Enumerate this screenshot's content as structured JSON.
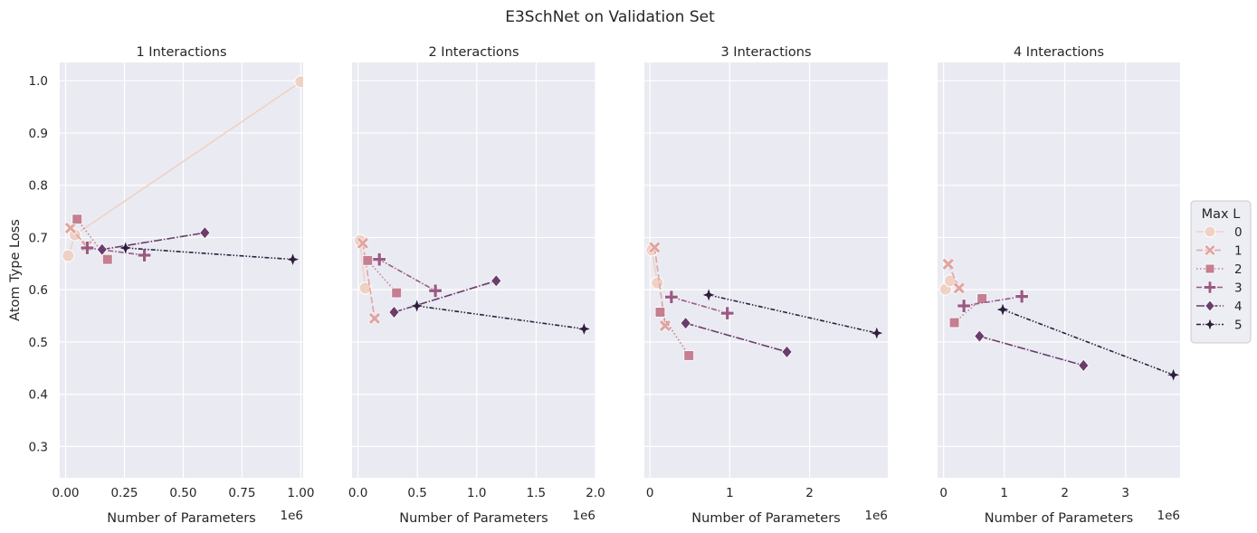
{
  "figure": {
    "title": "E3SchNet on Validation Set"
  },
  "legend": {
    "title": "Max L",
    "placement": "center-right",
    "entries": [
      {
        "label": "0",
        "color": "#efd1c6",
        "marker": "circle",
        "dash": "solid"
      },
      {
        "label": "1",
        "color": "#e0a5a1",
        "marker": "x",
        "dash": "dashed"
      },
      {
        "label": "2",
        "color": "#c47f91",
        "marker": "square",
        "dash": "dotted"
      },
      {
        "label": "3",
        "color": "#995a83",
        "marker": "plus",
        "dash": "dashdot-long"
      },
      {
        "label": "4",
        "color": "#6a3d6b",
        "marker": "diamond",
        "dash": "dashdot"
      },
      {
        "label": "5",
        "color": "#2d1e3e",
        "marker": "star",
        "dash": "dashdotdot"
      }
    ]
  },
  "chart_data": [
    {
      "type": "line",
      "title": "1 Interactions",
      "xlabel": "Number of Parameters",
      "ylabel": "Atom Type Loss",
      "x_offset_label": "1e6",
      "xlim": [
        -0.025,
        1.01
      ],
      "ylim": [
        0.24,
        1.035
      ],
      "xticks": [
        0,
        0.25,
        0.5,
        0.75,
        1.0
      ],
      "xtick_labels": [
        "0.00",
        "0.25",
        "0.50",
        "0.75",
        "1.00"
      ],
      "yticks": [
        0.3,
        0.4,
        0.5,
        0.6,
        0.7,
        0.8,
        0.9,
        1.0
      ],
      "ytick_labels": [
        "0.3",
        "0.4",
        "0.5",
        "0.6",
        "0.7",
        "0.8",
        "0.9",
        "1.0"
      ],
      "grid": true,
      "series": [
        {
          "name": "0",
          "x": [
            0.011,
            0.04,
            1.0
          ],
          "y": [
            0.665,
            0.705,
            0.998
          ]
        },
        {
          "name": "1",
          "x": [
            0.021,
            0.089
          ],
          "y": [
            0.718,
            0.684
          ]
        },
        {
          "name": "2",
          "x": [
            0.049,
            0.178
          ],
          "y": [
            0.735,
            0.658
          ]
        },
        {
          "name": "3",
          "x": [
            0.092,
            0.335
          ],
          "y": [
            0.68,
            0.666
          ]
        },
        {
          "name": "4",
          "x": [
            0.155,
            0.592
          ],
          "y": [
            0.677,
            0.709
          ]
        },
        {
          "name": "5",
          "x": [
            0.255,
            0.966
          ],
          "y": [
            0.68,
            0.658
          ]
        }
      ]
    },
    {
      "type": "line",
      "title": "2 Interactions",
      "xlabel": "Number of Parameters",
      "ylabel": "",
      "x_offset_label": "1e6",
      "xlim": [
        -0.05,
        2.0
      ],
      "ylim": [
        0.24,
        1.035
      ],
      "xticks": [
        0,
        0.5,
        1.0,
        1.5,
        2.0
      ],
      "xtick_labels": [
        "0.0",
        "0.5",
        "1.0",
        "1.5",
        "2.0"
      ],
      "yticks": [
        0.3,
        0.4,
        0.5,
        0.6,
        0.7,
        0.8,
        0.9,
        1.0
      ],
      "ytick_labels": [
        "0.3",
        "0.4",
        "0.5",
        "0.6",
        "0.7",
        "0.8",
        "0.9",
        "1.0"
      ],
      "grid": true,
      "series": [
        {
          "name": "0",
          "x": [
            0.018,
            0.061
          ],
          "y": [
            0.694,
            0.603
          ]
        },
        {
          "name": "1",
          "x": [
            0.041,
            0.14
          ],
          "y": [
            0.689,
            0.545
          ]
        },
        {
          "name": "2",
          "x": [
            0.082,
            0.325
          ],
          "y": [
            0.656,
            0.594
          ]
        },
        {
          "name": "3",
          "x": [
            0.18,
            0.652
          ],
          "y": [
            0.658,
            0.598
          ]
        },
        {
          "name": "4",
          "x": [
            0.304,
            1.164
          ],
          "y": [
            0.557,
            0.617
          ]
        },
        {
          "name": "5",
          "x": [
            0.496,
            1.904
          ],
          "y": [
            0.569,
            0.525
          ]
        }
      ]
    },
    {
      "type": "line",
      "title": "3 Interactions",
      "xlabel": "Number of Parameters",
      "ylabel": "",
      "x_offset_label": "1e6",
      "xlim": [
        -0.07,
        2.98
      ],
      "ylim": [
        0.24,
        1.035
      ],
      "xticks": [
        0,
        1,
        2
      ],
      "xtick_labels": [
        "0",
        "1",
        "2"
      ],
      "yticks": [
        0.3,
        0.4,
        0.5,
        0.6,
        0.7,
        0.8,
        0.9,
        1.0
      ],
      "ytick_labels": [
        "0.3",
        "0.4",
        "0.5",
        "0.6",
        "0.7",
        "0.8",
        "0.9",
        "1.0"
      ],
      "grid": true,
      "series": [
        {
          "name": "0",
          "x": [
            0.024,
            0.093
          ],
          "y": [
            0.676,
            0.613
          ]
        },
        {
          "name": "1",
          "x": [
            0.059,
            0.191
          ],
          "y": [
            0.681,
            0.531
          ]
        },
        {
          "name": "2",
          "x": [
            0.128,
            0.488
          ],
          "y": [
            0.557,
            0.474
          ]
        },
        {
          "name": "3",
          "x": [
            0.269,
            0.97
          ],
          "y": [
            0.586,
            0.555
          ]
        },
        {
          "name": "4",
          "x": [
            0.448,
            1.716
          ],
          "y": [
            0.536,
            0.481
          ]
        },
        {
          "name": "5",
          "x": [
            0.737,
            2.842
          ],
          "y": [
            0.59,
            0.517
          ]
        }
      ]
    },
    {
      "type": "line",
      "title": "4 Interactions",
      "xlabel": "Number of Parameters",
      "ylabel": "",
      "x_offset_label": "1e6",
      "xlim": [
        -0.1,
        3.9
      ],
      "ylim": [
        0.24,
        1.035
      ],
      "xticks": [
        0,
        1,
        2,
        3
      ],
      "xtick_labels": [
        "0",
        "1",
        "2",
        "3"
      ],
      "yticks": [
        0.3,
        0.4,
        0.5,
        0.6,
        0.7,
        0.8,
        0.9,
        1.0
      ],
      "ytick_labels": [
        "0.3",
        "0.4",
        "0.5",
        "0.6",
        "0.7",
        "0.8",
        "0.9",
        "1.0"
      ],
      "grid": true,
      "series": [
        {
          "name": "0",
          "x": [
            0.031,
            0.109
          ],
          "y": [
            0.601,
            0.617
          ]
        },
        {
          "name": "1",
          "x": [
            0.076,
            0.255
          ],
          "y": [
            0.649,
            0.603
          ]
        },
        {
          "name": "2",
          "x": [
            0.177,
            0.634
          ],
          "y": [
            0.537,
            0.583
          ]
        },
        {
          "name": "3",
          "x": [
            0.335,
            1.29
          ],
          "y": [
            0.569,
            0.587
          ]
        },
        {
          "name": "4",
          "x": [
            0.592,
            2.307
          ],
          "y": [
            0.511,
            0.455
          ]
        },
        {
          "name": "5",
          "x": [
            0.976,
            3.79
          ],
          "y": [
            0.562,
            0.437
          ]
        }
      ]
    }
  ]
}
